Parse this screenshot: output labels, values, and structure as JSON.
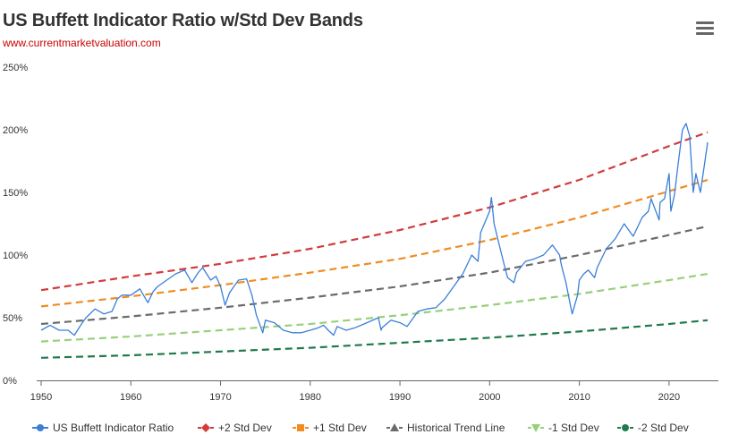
{
  "header": {
    "title": "US Buffett Indicator Ratio w/Std Dev Bands",
    "source": "www.currentmarketvaluation.com",
    "menu_icon": "hamburger-menu-icon"
  },
  "chart_data": {
    "type": "line",
    "title": "US Buffett Indicator Ratio w/Std Dev Bands",
    "subtitle": "www.currentmarketvaluation.com",
    "xlabel": "",
    "ylabel": "",
    "xlim": [
      1949.5,
      2025.5
    ],
    "ylim": [
      0,
      250
    ],
    "x_ticks": [
      1950,
      1960,
      1970,
      1980,
      1990,
      2000,
      2010,
      2020
    ],
    "y_ticks": [
      0,
      50,
      100,
      150,
      200,
      250
    ],
    "y_tick_labels": [
      "0%",
      "50%",
      "100%",
      "150%",
      "200%",
      "250%"
    ],
    "grid": false,
    "legend_position": "bottom",
    "series": [
      {
        "name": "US Buffett Indicator Ratio",
        "color": "#3a7fd9",
        "style": "solid",
        "marker": "circle",
        "x": [
          1950,
          1951,
          1952,
          1953,
          1953.7,
          1954.5,
          1955,
          1956,
          1957,
          1957.9,
          1958.5,
          1959,
          1960,
          1961,
          1961.9,
          1962.5,
          1963,
          1964,
          1965,
          1966,
          1966.8,
          1967.5,
          1968,
          1968.9,
          1969.5,
          1970,
          1970.5,
          1971,
          1972,
          1972.9,
          1973.5,
          1974,
          1974.7,
          1975,
          1976,
          1977,
          1978,
          1979,
          1980,
          1980.9,
          1981.5,
          1982,
          1982.6,
          1983,
          1984,
          1985,
          1986,
          1987.6,
          1987.9,
          1988,
          1989,
          1990,
          1990.8,
          1991.5,
          1992,
          1993,
          1994,
          1995,
          1996,
          1997,
          1998,
          1998.7,
          1999,
          2000,
          2000.2,
          2000.5,
          2001,
          2001.7,
          2002,
          2002.7,
          2003,
          2004,
          2005,
          2006,
          2007,
          2007.8,
          2008,
          2008.5,
          2009,
          2009.2,
          2009.8,
          2010,
          2010.5,
          2011,
          2011.7,
          2012,
          2013,
          2014,
          2015,
          2015.7,
          2016,
          2017,
          2017.7,
          2018,
          2018.9,
          2019,
          2019.5,
          2020,
          2020.2,
          2020.6,
          2021,
          2021.5,
          2021.9,
          2022.3,
          2022.7,
          2023,
          2023.5,
          2024,
          2024.3
        ],
        "y": [
          40,
          44,
          40,
          40,
          36,
          45,
          50,
          57,
          53,
          55,
          65,
          68,
          68,
          73,
          62,
          71,
          75,
          80,
          85,
          88,
          78,
          86,
          90,
          80,
          83,
          75,
          60,
          70,
          80,
          81,
          68,
          52,
          38,
          48,
          46,
          40,
          38,
          38,
          40,
          42,
          44,
          40,
          36,
          43,
          40,
          42,
          45,
          50,
          40,
          42,
          48,
          46,
          43,
          50,
          55,
          57,
          58,
          65,
          75,
          85,
          100,
          95,
          118,
          135,
          146,
          125,
          110,
          90,
          82,
          78,
          86,
          95,
          97,
          100,
          108,
          100,
          92,
          78,
          60,
          53,
          68,
          80,
          85,
          88,
          82,
          90,
          105,
          113,
          125,
          118,
          115,
          130,
          135,
          145,
          128,
          142,
          145,
          165,
          135,
          148,
          172,
          200,
          205,
          195,
          150,
          165,
          150,
          175,
          190
        ]
      },
      {
        "name": "+2 Std Dev",
        "color": "#d13c3c",
        "style": "dashed",
        "marker": "diamond",
        "x": [
          1950,
          1960,
          1970,
          1980,
          1990,
          2000,
          2010,
          2020,
          2024.3
        ],
        "y": [
          72,
          83,
          93,
          105,
          120,
          138,
          160,
          187,
          198
        ]
      },
      {
        "name": "+1 Std Dev",
        "color": "#f08c22",
        "style": "dashed",
        "marker": "square",
        "x": [
          1950,
          1960,
          1970,
          1980,
          1990,
          2000,
          2010,
          2020,
          2024.3
        ],
        "y": [
          59,
          67,
          76,
          86,
          97,
          112,
          130,
          151,
          160
        ]
      },
      {
        "name": "Historical Trend Line",
        "color": "#6b6b6b",
        "style": "dashed",
        "marker": "triangle",
        "x": [
          1950,
          1960,
          1970,
          1980,
          1990,
          2000,
          2010,
          2020,
          2024.3
        ],
        "y": [
          45,
          51,
          58,
          66,
          75,
          86,
          100,
          116,
          123
        ]
      },
      {
        "name": "-1 Std Dev",
        "color": "#98d07a",
        "style": "dashed",
        "marker": "triangle-down",
        "x": [
          1950,
          1960,
          1970,
          1980,
          1990,
          2000,
          2010,
          2020,
          2024.3
        ],
        "y": [
          31,
          35,
          40,
          45,
          52,
          60,
          69,
          80,
          85
        ]
      },
      {
        "name": "-2 Std Dev",
        "color": "#1f7a4c",
        "style": "dashed",
        "marker": "circle",
        "x": [
          1950,
          1960,
          1970,
          1980,
          1990,
          2000,
          2010,
          2020,
          2024.3
        ],
        "y": [
          18,
          20,
          23,
          26,
          30,
          34,
          39,
          45,
          48
        ]
      }
    ]
  }
}
